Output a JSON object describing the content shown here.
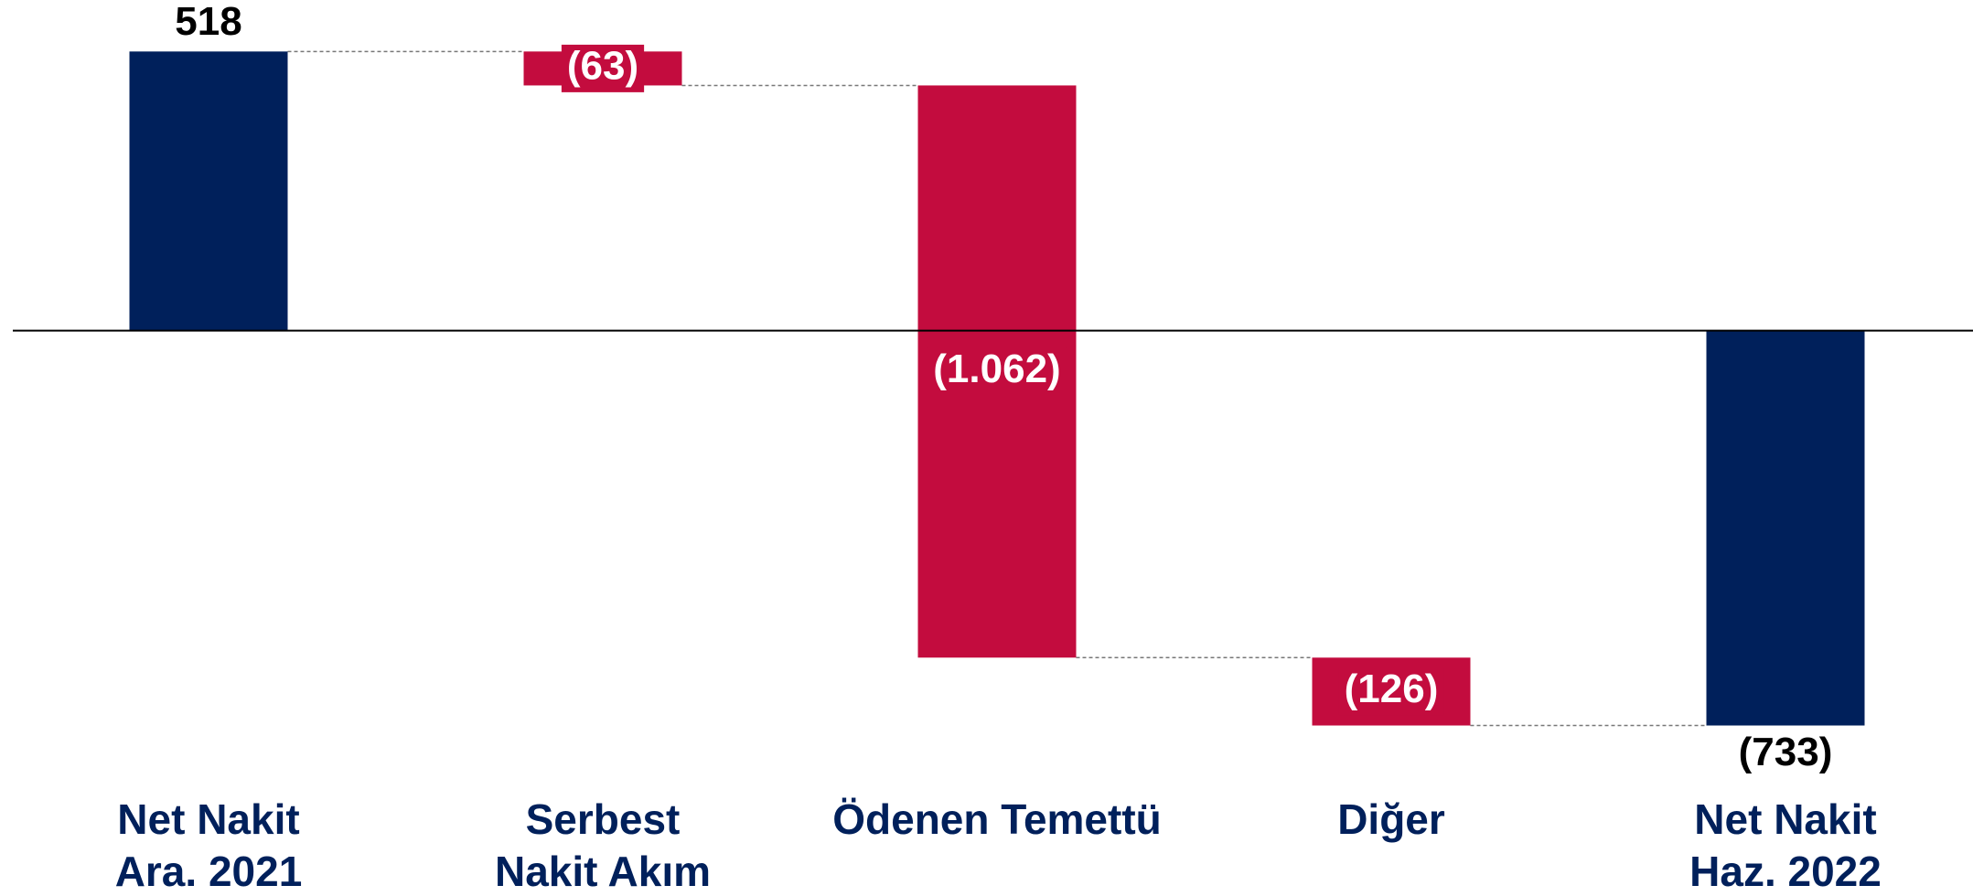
{
  "chart_data": {
    "type": "waterfall",
    "categories": [
      [
        "Net Nakit",
        "Ara. 2021"
      ],
      [
        "Serbest",
        "Nakit Akım"
      ],
      [
        "Ödenen Temettü"
      ],
      [
        "Diğer"
      ],
      [
        "Net Nakit",
        "Haz. 2022"
      ]
    ],
    "values": [
      518,
      -63,
      -1062,
      -126,
      -733
    ],
    "value_labels": [
      "518",
      "(63)",
      "(1.062)",
      "(126)",
      "(733)"
    ],
    "totals": [
      true,
      false,
      false,
      false,
      true
    ],
    "total_color": "#00205b",
    "change_color": "#c30c3e",
    "ylim": [
      -800,
      600
    ]
  }
}
